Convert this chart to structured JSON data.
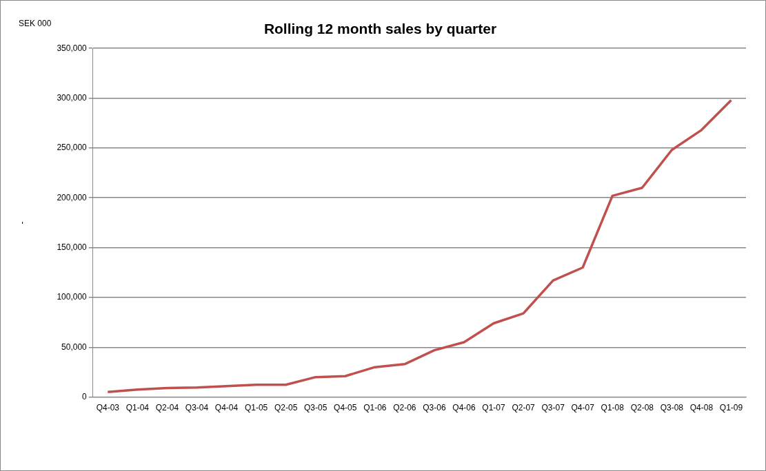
{
  "chart_data": {
    "type": "line",
    "title": "Rolling 12 month sales by quarter",
    "ylabel": "-",
    "annotations": [
      "SEK 000"
    ],
    "categories": [
      "Q4-03",
      "Q1-04",
      "Q2-04",
      "Q3-04",
      "Q4-04",
      "Q1-05",
      "Q2-05",
      "Q3-05",
      "Q4-05",
      "Q1-06",
      "Q2-06",
      "Q3-06",
      "Q4-06",
      "Q1-07",
      "Q2-07",
      "Q3-07",
      "Q4-07",
      "Q1-08",
      "Q2-08",
      "Q3-08",
      "Q4-08",
      "Q1-09"
    ],
    "series": [
      {
        "color": "#c0504d",
        "values": [
          5000,
          7500,
          9000,
          9600,
          11000,
          12300,
          12300,
          20000,
          21000,
          30000,
          33000,
          47000,
          55000,
          74000,
          84000,
          117000,
          130000,
          202000,
          210000,
          248000,
          268000,
          298000
        ]
      }
    ],
    "ylim": [
      0,
      350000
    ],
    "yticks": [
      {
        "value": 0,
        "label": "0"
      },
      {
        "value": 50000,
        "label": "50,000"
      },
      {
        "value": 100000,
        "label": "100,000"
      },
      {
        "value": 150000,
        "label": "150,000"
      },
      {
        "value": 200000,
        "label": "200,000"
      },
      {
        "value": 250000,
        "label": "250,000"
      },
      {
        "value": 300000,
        "label": "300,000"
      },
      {
        "value": 350000,
        "label": "350,000"
      }
    ],
    "grid": "y",
    "legend": false,
    "marker": "none",
    "line_style": "solid"
  }
}
